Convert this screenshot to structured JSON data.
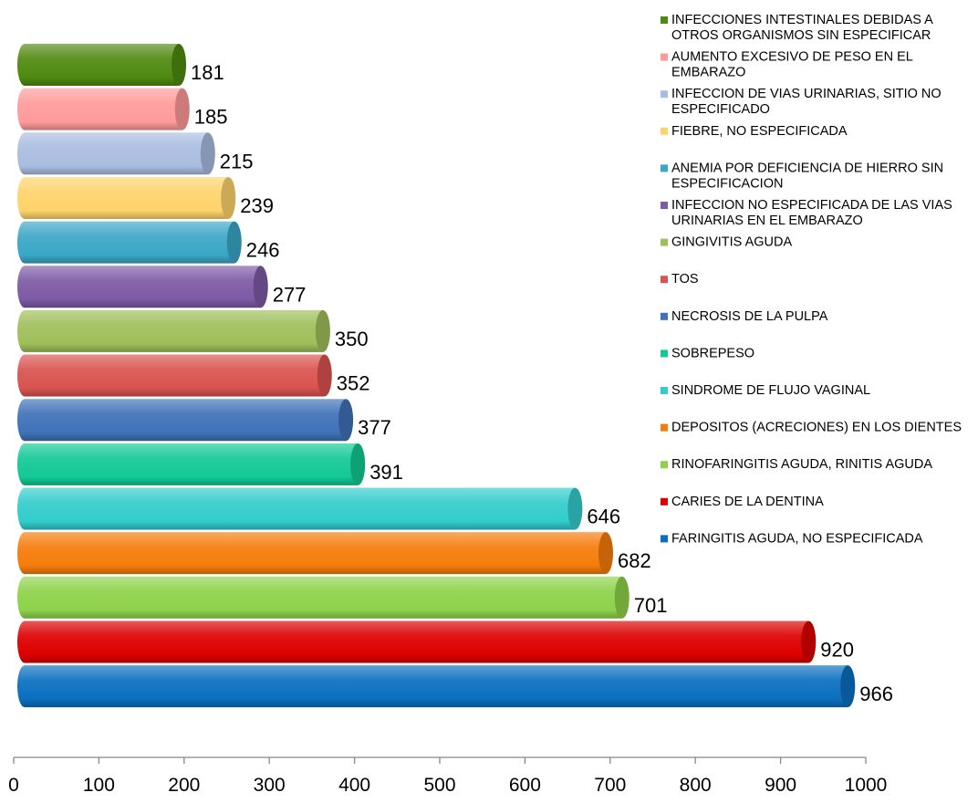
{
  "chart_data": {
    "type": "bar",
    "orientation": "horizontal",
    "style": "3d-cylinder",
    "categories": [
      "INFECCIONES INTESTINALES DEBIDAS A OTROS ORGANISMOS SIN ESPECIFICAR",
      "AUMENTO EXCESIVO DE PESO EN EL EMBARAZO",
      "INFECCION DE VIAS URINARIAS, SITIO NO ESPECIFICADO",
      "FIEBRE, NO ESPECIFICADA",
      "ANEMIA POR DEFICIENCIA DE HIERRO SIN ESPECIFICACION",
      "INFECCION NO ESPECIFICADA DE LAS VIAS URINARIAS EN EL EMBARAZO",
      "GINGIVITIS AGUDA",
      "TOS",
      "NECROSIS DE LA PULPA",
      "SOBREPESO",
      "SINDROME DE FLUJO VAGINAL",
      "DEPOSITOS (ACRECIONES) EN LOS DIENTES",
      "RINOFARINGITIS AGUDA, RINITIS AGUDA",
      "CARIES DE LA DENTINA",
      "FARINGITIS AGUDA, NO ESPECIFICADA"
    ],
    "values": [
      181,
      185,
      215,
      239,
      246,
      277,
      350,
      352,
      377,
      391,
      646,
      682,
      701,
      920,
      966
    ],
    "value_labels": [
      "181",
      "185",
      "215",
      "239",
      "246",
      "277",
      "350",
      "352",
      "377",
      "391",
      "646",
      "682",
      "701",
      "920",
      "966"
    ],
    "colors": [
      "#4f8a10",
      "#ff9a9a",
      "#a9bde0",
      "#ffd36b",
      "#3aa7c6",
      "#7d5aa5",
      "#9fbf5a",
      "#d9534f",
      "#3f72b8",
      "#12c994",
      "#33cccc",
      "#f57c0a",
      "#8ed24a",
      "#dd0000",
      "#0a6fc0"
    ],
    "xlim": [
      0,
      1000
    ],
    "xticks": [
      "0",
      "100",
      "200",
      "300",
      "400",
      "500",
      "600",
      "700",
      "800",
      "900",
      "1000"
    ],
    "title": "",
    "xlabel": "",
    "ylabel": "",
    "grid": false,
    "legend_position": "top-right"
  }
}
